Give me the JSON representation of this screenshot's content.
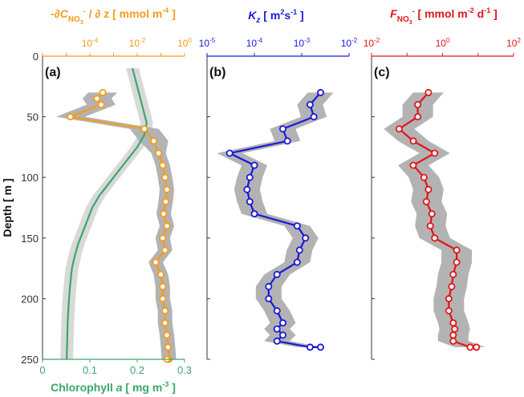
{
  "colors": {
    "nitrate": "#f39c1e",
    "chlorophyll": "#3aa76d",
    "kz": "#1a1adb",
    "flux": "#e0161b",
    "shade": "#b3b3b3",
    "chl_shade": "#d9d9d9",
    "axis": "#333333"
  },
  "chart_data": [
    {
      "type": "line",
      "panel_label": "(a)",
      "ylabel": "Depth [ m ]",
      "ylim": [
        250,
        0
      ],
      "yticks": [
        0,
        50,
        100,
        150,
        200,
        250
      ],
      "top_axis": {
        "label_parts": {
          "prefix": "-∂",
          "var": "C",
          "sub": "NO",
          "subsub": "3",
          "sup": "-",
          "mid": " / ∂ z  [ mmol m",
          "exp": "-4",
          "suffix": " ]"
        },
        "scale": "log",
        "range": [
          1e-06,
          1
        ],
        "ticks": [
          {
            "value": 0.0001,
            "base": "10",
            "exp": "-4"
          },
          {
            "value": 0.01,
            "base": "10",
            "exp": "-2"
          },
          {
            "value": 1,
            "base": "10",
            "exp": "0"
          }
        ]
      },
      "bottom_axis": {
        "label_parts": {
          "prefix": "Chlorophyll ",
          "italic": "a",
          "mid": "  [ mg m",
          "exp": "-3",
          "suffix": " ]"
        },
        "range": [
          0,
          0.3
        ],
        "ticks": [
          "0",
          "0.1",
          "0.2",
          "0.3"
        ]
      },
      "series": [
        {
          "key": "nitrate_gradient",
          "axis": "top",
          "x": [
            0.00035,
            0.0002,
            0.0003,
            1.5e-05,
            0.02,
            0.05,
            0.08,
            0.12,
            0.15,
            0.18,
            0.16,
            0.13,
            0.18,
            0.12,
            0.15,
            0.06,
            0.1,
            0.12,
            0.12,
            0.15,
            0.15,
            0.18,
            0.2,
            0.22,
            0.2,
            0.2,
            0.18
          ],
          "depth": [
            30,
            35,
            40,
            50,
            60,
            70,
            80,
            90,
            100,
            110,
            120,
            130,
            140,
            150,
            160,
            170,
            180,
            190,
            200,
            210,
            220,
            230,
            240,
            250,
            250,
            250,
            250
          ]
        },
        {
          "key": "chlorophyll",
          "axis": "bottom",
          "x": [
            0.19,
            0.2,
            0.21,
            0.22,
            0.215,
            0.2,
            0.18,
            0.16,
            0.14,
            0.12,
            0.105,
            0.095,
            0.085,
            0.075,
            0.068,
            0.062,
            0.058,
            0.055,
            0.053,
            0.052,
            0.051
          ],
          "depth": [
            10,
            25,
            40,
            55,
            65,
            75,
            85,
            95,
            105,
            115,
            125,
            135,
            145,
            155,
            165,
            175,
            190,
            205,
            220,
            235,
            250
          ]
        }
      ]
    },
    {
      "type": "line",
      "panel_label": "(b)",
      "ylim": [
        250,
        0
      ],
      "top_axis": {
        "label_parts": {
          "var": "K",
          "sub": "z",
          "mid": "  [ m",
          "sup1": "2",
          "mid2": "s",
          "sup2": "-1",
          "suffix": " ]"
        },
        "scale": "log",
        "range": [
          1e-05,
          0.01
        ],
        "ticks": [
          {
            "value": 1e-05,
            "base": "10",
            "exp": "-5"
          },
          {
            "value": 0.0001,
            "base": "10",
            "exp": "-4"
          },
          {
            "value": 0.001,
            "base": "10",
            "exp": "-3"
          },
          {
            "value": 0.01,
            "base": "10",
            "exp": "-2"
          }
        ]
      },
      "series": [
        {
          "key": "kz",
          "x": [
            0.0025,
            0.0015,
            0.0018,
            0.0004,
            0.0005,
            3e-05,
            0.0001,
            8e-05,
            7e-05,
            8e-05,
            0.0001,
            0.0008,
            0.0012,
            0.0009,
            0.0008,
            0.0003,
            0.0002,
            0.0002,
            0.0003,
            0.0004,
            0.0003,
            0.0004,
            0.0003,
            0.0015,
            0.0025
          ],
          "depth": [
            30,
            40,
            50,
            60,
            70,
            80,
            90,
            100,
            110,
            120,
            130,
            140,
            150,
            160,
            170,
            180,
            190,
            200,
            210,
            220,
            225,
            230,
            235,
            240,
            240
          ]
        }
      ]
    },
    {
      "type": "line",
      "panel_label": "(c)",
      "ylim": [
        250,
        0
      ],
      "top_axis": {
        "label_parts": {
          "var": "F",
          "sub": "NO",
          "subsub": "3",
          "sup": "-",
          "mid": "  [ mmol m",
          "exp": "-2",
          "mid2": " d",
          "exp2": "-1",
          "suffix": " ]"
        },
        "scale": "log",
        "range": [
          0.01,
          100
        ],
        "ticks": [
          {
            "value": 0.01,
            "base": "10",
            "exp": "-2"
          },
          {
            "value": 1,
            "base": "10",
            "exp": "0"
          },
          {
            "value": 100,
            "base": "10",
            "exp": "2"
          }
        ]
      },
      "series": [
        {
          "key": "flux",
          "x": [
            0.4,
            0.2,
            0.2,
            0.06,
            0.15,
            0.6,
            0.15,
            0.3,
            0.4,
            0.35,
            0.5,
            0.45,
            0.6,
            2.5,
            2.5,
            2.0,
            1.8,
            1.5,
            1.5,
            2.0,
            2.2,
            2.0,
            2.0,
            6.0,
            9.0
          ],
          "depth": [
            30,
            40,
            50,
            60,
            70,
            80,
            90,
            100,
            110,
            120,
            130,
            140,
            150,
            160,
            170,
            180,
            190,
            200,
            210,
            220,
            225,
            230,
            235,
            240,
            240
          ]
        }
      ]
    }
  ]
}
